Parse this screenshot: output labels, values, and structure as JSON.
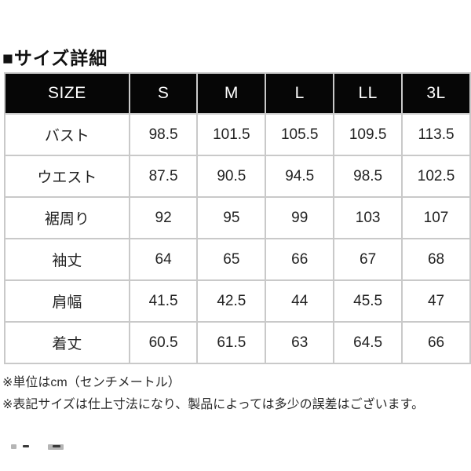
{
  "page": {
    "title": "■サイズ詳細"
  },
  "table": {
    "columns": [
      "SIZE",
      "S",
      "M",
      "L",
      "LL",
      "3L"
    ],
    "rows": [
      {
        "label": "バスト",
        "values": [
          "98.5",
          "101.5",
          "105.5",
          "109.5",
          "113.5"
        ]
      },
      {
        "label": "ウエスト",
        "values": [
          "87.5",
          "90.5",
          "94.5",
          "98.5",
          "102.5"
        ]
      },
      {
        "label": "裾周り",
        "values": [
          "92",
          "95",
          "99",
          "103",
          "107"
        ]
      },
      {
        "label": "袖丈",
        "values": [
          "64",
          "65",
          "66",
          "67",
          "68"
        ]
      },
      {
        "label": "肩幅",
        "values": [
          "41.5",
          "42.5",
          "44",
          "45.5",
          "47"
        ]
      },
      {
        "label": "着丈",
        "values": [
          "60.5",
          "61.5",
          "63",
          "64.5",
          "66"
        ]
      }
    ]
  },
  "notes": [
    "※単位はcm（センチメートル）",
    "※表記サイズは仕上寸法になり、製品によっては多少の誤差はございます。"
  ],
  "colors": {
    "header_bg": "#060606",
    "header_text": "#ffffff",
    "border": "#c9c9c9",
    "body_text": "#222222",
    "background": "#ffffff"
  }
}
